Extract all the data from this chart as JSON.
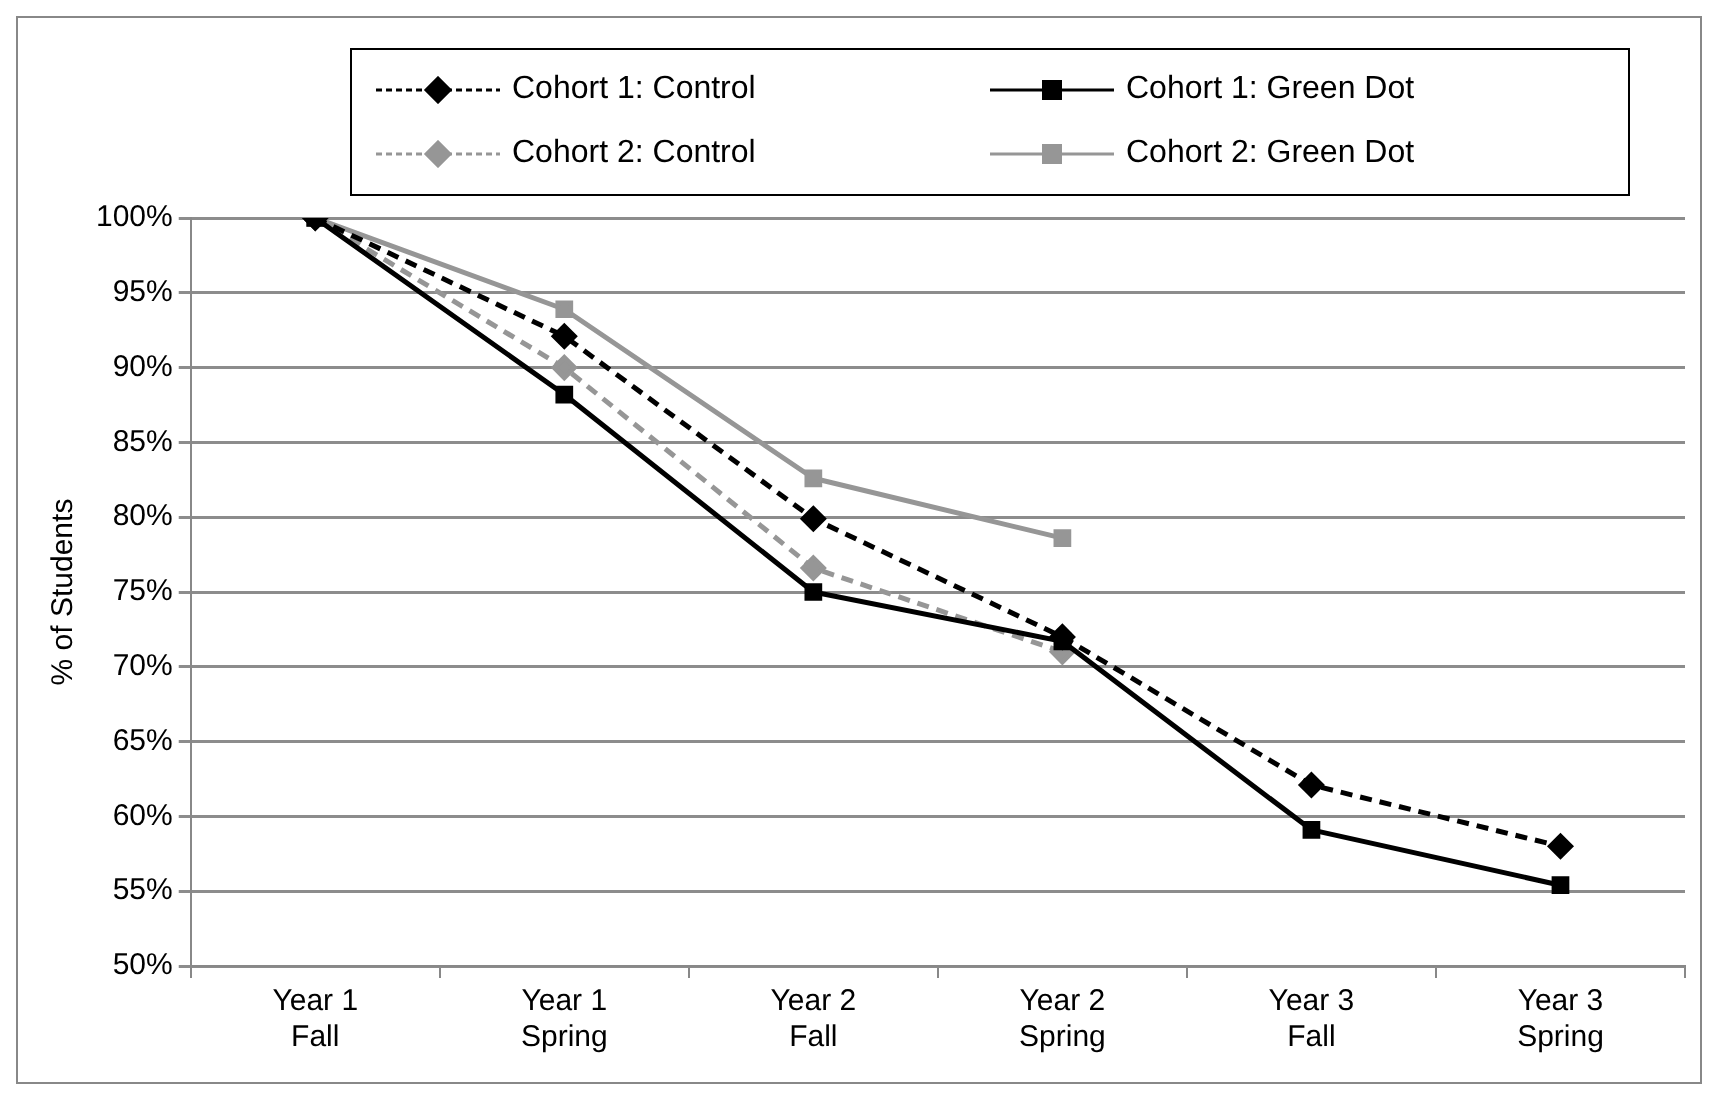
{
  "chart_data": {
    "type": "line",
    "ylabel": "% of Students",
    "categories": [
      "Year 1 Fall",
      "Year 1 Spring",
      "Year 2 Fall",
      "Year 2 Spring",
      "Year 3 Fall",
      "Year 3 Spring"
    ],
    "series": [
      {
        "name": "Cohort 1: Control",
        "color": "#000000",
        "line_style": "dashed",
        "marker": "diamond",
        "values": [
          100,
          92.1,
          79.9,
          72,
          62.1,
          58
        ]
      },
      {
        "name": "Cohort 1: Green Dot",
        "color": "#000000",
        "line_style": "solid",
        "marker": "square",
        "values": [
          100,
          88.2,
          75,
          71.7,
          59.1,
          55.4
        ]
      },
      {
        "name": "Cohort 2: Control",
        "color": "#969696",
        "line_style": "dashed",
        "marker": "diamond",
        "values": [
          100,
          90,
          76.6,
          71,
          null,
          null
        ]
      },
      {
        "name": "Cohort 2: Green Dot",
        "color": "#969696",
        "line_style": "solid",
        "marker": "square",
        "values": [
          100,
          93.9,
          82.6,
          78.6,
          null,
          null
        ]
      }
    ],
    "ylim": [
      50,
      100
    ],
    "yticks": [
      {
        "value": 50,
        "label": "50%"
      },
      {
        "value": 55,
        "label": "55%"
      },
      {
        "value": 60,
        "label": "60%"
      },
      {
        "value": 65,
        "label": "65%"
      },
      {
        "value": 70,
        "label": "70%"
      },
      {
        "value": 75,
        "label": "75%"
      },
      {
        "value": 80,
        "label": "80%"
      },
      {
        "value": 85,
        "label": "85%"
      },
      {
        "value": 90,
        "label": "90%"
      },
      {
        "value": 95,
        "label": "95%"
      },
      {
        "value": 100,
        "label": "100%"
      }
    ],
    "grid": "y",
    "legend": "top"
  }
}
